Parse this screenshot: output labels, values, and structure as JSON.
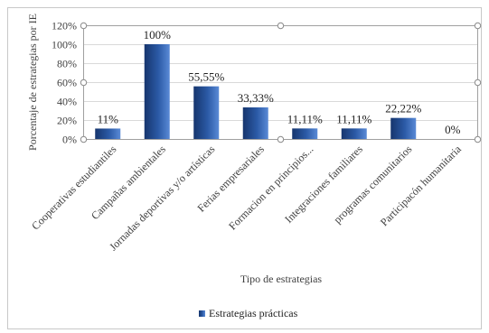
{
  "chart_data": {
    "type": "bar",
    "title": "",
    "xlabel": "Tipo de estrategias",
    "ylabel": "Porcentaje de estrategias por IE",
    "categories": [
      "Cooperativas estudiantiles",
      "Campañas ambientales",
      "Jornadas deportivas y/o artísticas",
      "Ferias empresariales",
      "Formacion en principios...",
      "Integraciones familiares",
      "programas comunitarios",
      "Participacón humanitaria"
    ],
    "series": [
      {
        "name": "Estrategias prácticas",
        "values": [
          11,
          100,
          55.55,
          33.33,
          11.11,
          11.11,
          22.22,
          0
        ],
        "labels": [
          "11%",
          "100%",
          "55,55%",
          "33,33%",
          "11,11%",
          "11,11%",
          "22,22%",
          "0%"
        ]
      }
    ],
    "ylim": [
      0,
      120
    ],
    "yticks": [
      "0%",
      "20%",
      "40%",
      "60%",
      "80%",
      "100%",
      "120%"
    ],
    "grid": true,
    "legend": "bottom",
    "colors": {
      "bar_dark": "#1a3c78",
      "bar_light": "#4a7cc8",
      "grid": "#d9d9d9",
      "frame": "#b0b0b0"
    }
  }
}
